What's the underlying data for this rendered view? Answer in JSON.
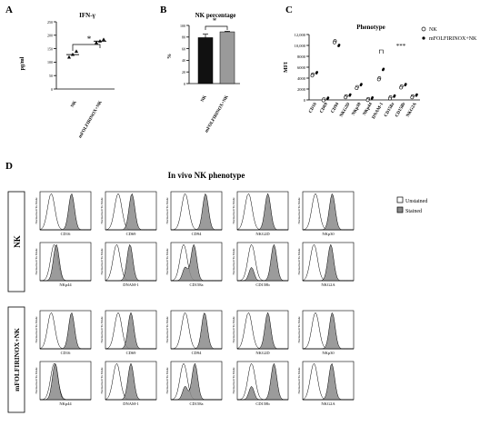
{
  "panel_letters": [
    "A",
    "B",
    "C",
    "D"
  ],
  "significance": {
    "a": "*",
    "b": "*",
    "c": "***"
  },
  "chart_data": [
    {
      "panel": "A",
      "type": "scatter",
      "title": "IFN-γ",
      "ylabel": "pg/ml",
      "categories": [
        "NK",
        "mFOLFIRINOX+NK"
      ],
      "ylim": [
        0,
        250
      ],
      "yticks": [
        "0",
        "50",
        "100",
        "150",
        "200",
        "250"
      ],
      "series": [
        {
          "values_by_group": [
            [
              118,
              128,
              140
            ],
            [
              172,
              178,
              184
            ]
          ],
          "means": [
            128,
            178
          ]
        }
      ]
    },
    {
      "panel": "B",
      "type": "bar",
      "title": "NK percentage",
      "ylabel": "%",
      "categories": [
        "NK",
        "mFOLFIRINOX+NK"
      ],
      "values": [
        79,
        89
      ],
      "errors": [
        6,
        1
      ],
      "bar_colors": [
        "#111111",
        "#9a9a9a"
      ],
      "ylim": [
        0,
        100
      ],
      "yticks": [
        "0",
        "20",
        "40",
        "60",
        "80",
        "100"
      ]
    },
    {
      "panel": "C",
      "type": "scatter",
      "title": "Phenotype",
      "ylabel": "MFI",
      "categories": [
        "CD16",
        "CD69",
        "CD94",
        "NKG2D",
        "NKp30",
        "NKp44",
        "DNAM-1",
        "CD158a",
        "CD158b",
        "NKG2A"
      ],
      "ylim": [
        0,
        12000
      ],
      "yticks": [
        "0",
        "2000",
        "4000",
        "6000",
        "8000",
        "10,000",
        "12,000"
      ],
      "legend_position": "top-right",
      "series": [
        {
          "name": "NK",
          "marker": "open-circle",
          "values": [
            4700,
            150,
            10800,
            700,
            2400,
            200,
            4000,
            500,
            2500,
            700
          ]
        },
        {
          "name": "mFOLFIRINOX+NK",
          "marker": "filled-dot",
          "values": [
            4900,
            200,
            9900,
            800,
            2700,
            250,
            5500,
            600,
            2700,
            800
          ]
        }
      ]
    },
    {
      "panel": "D",
      "type": "area",
      "title": "In vivo NK phenotype",
      "ylabel": "Normalized To Mode",
      "groups": [
        "NK",
        "mFOLFIRINOX+NK"
      ],
      "rows": [
        [
          "CD16",
          "CD69",
          "CD94",
          "NKG2D",
          "NKp30"
        ],
        [
          "NKp44",
          "DNAM-1",
          "CD158a",
          "CD158b",
          "NKG2A"
        ]
      ],
      "legend": [
        "Unstained",
        "Stained"
      ],
      "unstained_peaks": [
        0.22,
        0.5,
        0.22,
        0.22,
        0.25,
        0.25,
        0.2,
        0.2,
        0.22,
        0.2
      ],
      "stained_peaks_nk": [
        0.62,
        0.52,
        0.68,
        0.6,
        0.58,
        0.32,
        0.48,
        0.45,
        0.72,
        0.55
      ],
      "stained_peaks_mfolf": [
        0.62,
        0.5,
        0.66,
        0.6,
        0.58,
        0.3,
        0.5,
        0.47,
        0.72,
        0.57
      ],
      "secondary_peak_panels": [
        "CD158a",
        "CD158b"
      ]
    }
  ]
}
